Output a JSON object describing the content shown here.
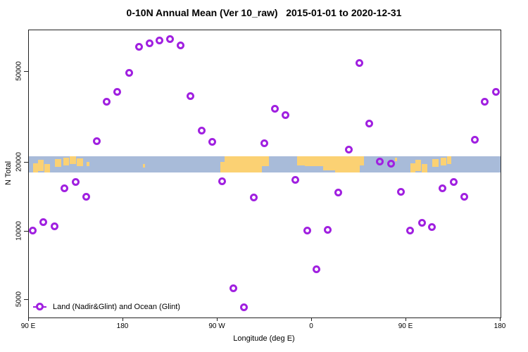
{
  "colors": {
    "marker": "#a020e0",
    "ocean": "#a8bbd9",
    "land": "#fbd173",
    "axis": "#222222",
    "text": "#000000"
  },
  "chart_data": {
    "type": "scatter",
    "title": "0-10N Annual Mean (Ver 10_raw)   2015-01-01 to 2020-12-31",
    "xlabel": "Longitude (deg E)",
    "ylabel": "N Total",
    "legend": "Land (Nadir&Glint) and Ocean (Glint)",
    "grid": false,
    "legend_position": "bottom-left-inside",
    "x_axis": {
      "span_deg": 450,
      "start_lon": "90 E",
      "ticks": [
        {
          "deg": 0,
          "label": "90 E"
        },
        {
          "deg": 90,
          "label": "180"
        },
        {
          "deg": 180,
          "label": "90 W"
        },
        {
          "deg": 270,
          "label": "0"
        },
        {
          "deg": 360,
          "label": "90 E"
        },
        {
          "deg": 450,
          "label": "180"
        }
      ]
    },
    "y_axis": {
      "scale": "log",
      "ylim": [
        4200,
        76000
      ],
      "ticks": [
        {
          "value": 50000,
          "label": "50000"
        },
        {
          "value": 20000,
          "label": "20000"
        },
        {
          "value": 10000,
          "label": "10000"
        },
        {
          "value": 5000,
          "label": "5000"
        }
      ]
    },
    "points": [
      {
        "deg": 4,
        "lon": "94E",
        "n": 10100
      },
      {
        "deg": 14,
        "lon": "104E",
        "n": 10960
      },
      {
        "deg": 24.5,
        "lon": "115E",
        "n": 10500
      },
      {
        "deg": 34,
        "lon": "124E",
        "n": 15430
      },
      {
        "deg": 44.5,
        "lon": "135E",
        "n": 16470
      },
      {
        "deg": 55,
        "lon": "145E",
        "n": 14210
      },
      {
        "deg": 65,
        "lon": "155E",
        "n": 24900
      },
      {
        "deg": 74.5,
        "lon": "165E",
        "n": 36990
      },
      {
        "deg": 84.5,
        "lon": "175E",
        "n": 40980
      },
      {
        "deg": 95.5,
        "lon": "174W",
        "n": 49400
      },
      {
        "deg": 105,
        "lon": "165W",
        "n": 64230
      },
      {
        "deg": 115,
        "lon": "155W",
        "n": 66880
      },
      {
        "deg": 124.5,
        "lon": "146W",
        "n": 68470
      },
      {
        "deg": 134.5,
        "lon": "136W",
        "n": 69790
      },
      {
        "deg": 144.5,
        "lon": "125W",
        "n": 65140
      },
      {
        "deg": 154,
        "lon": "116W",
        "n": 39270
      },
      {
        "deg": 165,
        "lon": "105W",
        "n": 27690
      },
      {
        "deg": 175,
        "lon": "95W",
        "n": 24720
      },
      {
        "deg": 184.5,
        "lon": "85W",
        "n": 16530
      },
      {
        "deg": 195,
        "lon": "75W",
        "n": 5620
      },
      {
        "deg": 205,
        "lon": "65W",
        "n": 4650
      },
      {
        "deg": 214.5,
        "lon": "56W",
        "n": 14110
      },
      {
        "deg": 224.5,
        "lon": "45W",
        "n": 24300
      },
      {
        "deg": 235,
        "lon": "35W",
        "n": 34410
      },
      {
        "deg": 245,
        "lon": "25W",
        "n": 32290
      },
      {
        "deg": 254,
        "lon": "16W",
        "n": 16850
      },
      {
        "deg": 265.5,
        "lon": "5W",
        "n": 10100
      },
      {
        "deg": 274.5,
        "lon": "5E",
        "n": 6820
      },
      {
        "deg": 285,
        "lon": "15E",
        "n": 10180
      },
      {
        "deg": 295.5,
        "lon": "26E",
        "n": 14830
      },
      {
        "deg": 305.5,
        "lon": "36E",
        "n": 22800
      },
      {
        "deg": 315,
        "lon": "45E",
        "n": 54830
      },
      {
        "deg": 325,
        "lon": "55E",
        "n": 29580
      },
      {
        "deg": 335,
        "lon": "65E",
        "n": 20170
      },
      {
        "deg": 345.5,
        "lon": "76E",
        "n": 19790
      },
      {
        "deg": 355,
        "lon": "85E",
        "n": 14900
      },
      {
        "deg": 364,
        "lon": "94E",
        "n": 10110
      },
      {
        "deg": 375,
        "lon": "105E",
        "n": 10930
      },
      {
        "deg": 384.5,
        "lon": "115E",
        "n": 10490
      },
      {
        "deg": 394.5,
        "lon": "125E",
        "n": 15480
      },
      {
        "deg": 405,
        "lon": "135E",
        "n": 16520
      },
      {
        "deg": 415.5,
        "lon": "146E",
        "n": 14170
      },
      {
        "deg": 425.5,
        "lon": "156E",
        "n": 25200
      },
      {
        "deg": 435,
        "lon": "165E",
        "n": 36940
      },
      {
        "deg": 445.5,
        "lon": "176E",
        "n": 40910
      }
    ],
    "map_band": {
      "n_top": 21400,
      "n_bottom": 18100,
      "land": [
        {
          "d0": 4,
          "d1": 9,
          "t": 0.45,
          "b": 1
        },
        {
          "d0": 9,
          "d1": 14,
          "t": 0.25,
          "b": 0.9
        },
        {
          "d0": 15,
          "d1": 20,
          "t": 0.5,
          "b": 1
        },
        {
          "d0": 25,
          "d1": 31,
          "t": 0.2,
          "b": 0.65
        },
        {
          "d0": 33,
          "d1": 38,
          "t": 0.1,
          "b": 0.55
        },
        {
          "d0": 39,
          "d1": 45,
          "t": 0,
          "b": 0.5
        },
        {
          "d0": 46,
          "d1": 52,
          "t": 0.15,
          "b": 0.6
        },
        {
          "d0": 55,
          "d1": 58,
          "t": 0.35,
          "b": 0.6
        },
        {
          "d0": 109,
          "d1": 111,
          "t": 0.5,
          "b": 0.68
        },
        {
          "d0": 183,
          "d1": 187,
          "t": 0.35,
          "b": 1
        },
        {
          "d0": 187,
          "d1": 222,
          "t": 0,
          "b": 1
        },
        {
          "d0": 222,
          "d1": 229,
          "t": 0,
          "b": 0.6
        },
        {
          "d0": 256,
          "d1": 263,
          "t": 0,
          "b": 0.55
        },
        {
          "d0": 263,
          "d1": 320,
          "t": 0,
          "b": 1
        },
        {
          "d0": 349,
          "d1": 351,
          "t": 0.1,
          "b": 0.3
        },
        {
          "d0": 364,
          "d1": 369,
          "t": 0.45,
          "b": 1
        },
        {
          "d0": 369,
          "d1": 374,
          "t": 0.25,
          "b": 0.9
        },
        {
          "d0": 375,
          "d1": 380,
          "t": 0.5,
          "b": 1
        },
        {
          "d0": 385,
          "d1": 391,
          "t": 0.2,
          "b": 0.65
        },
        {
          "d0": 393,
          "d1": 398,
          "t": 0.1,
          "b": 0.55
        },
        {
          "d0": 399,
          "d1": 403,
          "t": 0,
          "b": 0.5
        }
      ],
      "water": [
        {
          "d0": 263,
          "d1": 281,
          "t": 0.6,
          "b": 1
        },
        {
          "d0": 281,
          "d1": 292,
          "t": 0.85,
          "b": 1
        },
        {
          "d0": 316,
          "d1": 320,
          "t": 0.55,
          "b": 1
        }
      ]
    }
  }
}
